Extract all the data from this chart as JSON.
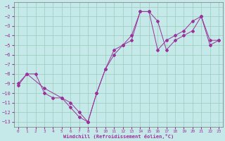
{
  "xlabel": "Windchill (Refroidissement éolien,°C)",
  "background_color": "#c5e8e8",
  "grid_color": "#99ccbb",
  "line_color": "#993399",
  "xlim": [
    -0.5,
    23.5
  ],
  "ylim": [
    -13.5,
    -0.5
  ],
  "xticks": [
    0,
    1,
    2,
    3,
    4,
    5,
    6,
    7,
    8,
    9,
    10,
    11,
    12,
    13,
    14,
    15,
    16,
    17,
    18,
    19,
    20,
    21,
    22,
    23
  ],
  "yticks": [
    -1,
    -2,
    -3,
    -4,
    -5,
    -6,
    -7,
    -8,
    -9,
    -10,
    -11,
    -12,
    -13
  ],
  "line1_x": [
    0,
    1,
    2,
    3,
    4,
    5,
    6,
    7,
    8,
    9,
    10,
    11,
    12,
    13,
    14,
    15,
    16,
    17,
    18,
    19,
    20,
    21,
    22,
    23
  ],
  "line1_y": [
    -9.0,
    -8.0,
    -8.0,
    -10.0,
    -10.5,
    -10.5,
    -11.5,
    -12.5,
    -13.0,
    -10.0,
    -7.5,
    -5.5,
    -5.0,
    -4.5,
    -1.5,
    -1.5,
    -5.5,
    -4.5,
    -4.0,
    -3.5,
    -2.5,
    -2.0,
    -5.0,
    -4.5
  ],
  "line2_x": [
    0,
    1,
    3,
    5,
    6,
    7,
    8,
    9,
    10,
    11,
    12,
    13,
    14,
    15,
    16,
    17,
    18,
    19,
    20,
    21,
    22,
    23
  ],
  "line2_y": [
    -9.2,
    -8.0,
    -9.5,
    -10.5,
    -11.0,
    -12.0,
    -13.0,
    -10.0,
    -7.5,
    -6.0,
    -5.0,
    -4.0,
    -1.5,
    -1.5,
    -2.5,
    -5.5,
    -4.5,
    -4.0,
    -3.5,
    -2.0,
    -4.5,
    -4.5
  ]
}
